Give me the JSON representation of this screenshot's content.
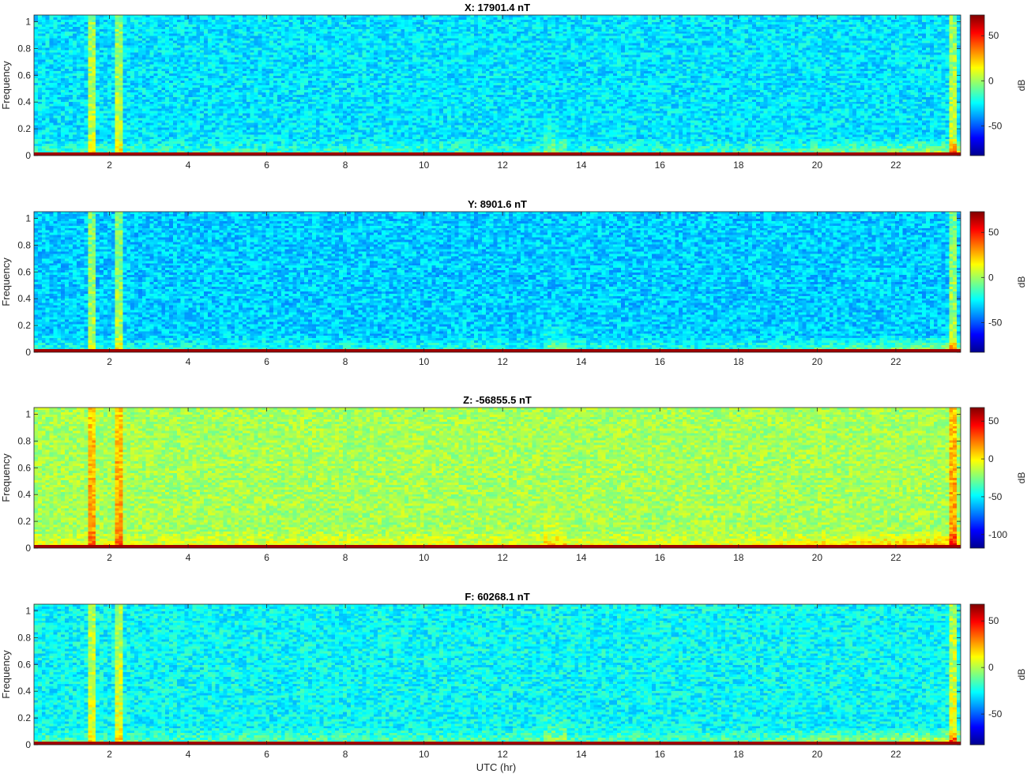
{
  "figure": {
    "xlabel": "UTC (hr)"
  },
  "colormap": [
    "#00008f",
    "#0000ff",
    "#007fff",
    "#00ffff",
    "#7fff7f",
    "#ffff00",
    "#ff7f00",
    "#ff0000",
    "#800000"
  ],
  "chart_data": [
    {
      "type": "heatmap",
      "title": "X: 17901.4 nT",
      "xlabel": "",
      "ylabel": "Frequency",
      "xlim": [
        0.08,
        23.65
      ],
      "ylim": [
        0,
        1.05
      ],
      "xticks": [
        2,
        4,
        6,
        8,
        10,
        12,
        14,
        16,
        18,
        20,
        22
      ],
      "yticks": [
        0,
        0.2,
        0.4,
        0.6,
        0.8,
        1
      ],
      "colorbar": {
        "label": "dB",
        "range": [
          -83,
          73
        ],
        "ticks": [
          -50,
          0,
          50
        ]
      },
      "background_db": -28,
      "spikes_hr": [
        1.55,
        2.25,
        23.45
      ],
      "noise_band_hr": [
        13.0,
        13.6
      ]
    },
    {
      "type": "heatmap",
      "title": "Y: 8901.6 nT",
      "xlabel": "",
      "ylabel": "Frequency",
      "xlim": [
        0.08,
        23.65
      ],
      "ylim": [
        0,
        1.05
      ],
      "xticks": [
        2,
        4,
        6,
        8,
        10,
        12,
        14,
        16,
        18,
        20,
        22
      ],
      "yticks": [
        0,
        0.2,
        0.4,
        0.6,
        0.8,
        1
      ],
      "colorbar": {
        "label": "dB",
        "range": [
          -83,
          73
        ],
        "ticks": [
          -50,
          0,
          50
        ]
      },
      "background_db": -32,
      "spikes_hr": [
        1.55,
        2.25,
        23.45
      ],
      "noise_band_hr": [
        13.0,
        13.6
      ]
    },
    {
      "type": "heatmap",
      "title": "Z: -56855.5 nT",
      "xlabel": "",
      "ylabel": "Frequency",
      "xlim": [
        0.08,
        23.65
      ],
      "ylim": [
        0,
        1.05
      ],
      "xticks": [
        2,
        4,
        6,
        8,
        10,
        12,
        14,
        16,
        18,
        20,
        22
      ],
      "yticks": [
        0,
        0.2,
        0.4,
        0.6,
        0.8,
        1
      ],
      "colorbar": {
        "label": "dB",
        "range": [
          -118,
          68
        ],
        "ticks": [
          -100,
          -50,
          0,
          50
        ]
      },
      "background_db": -18,
      "spikes_hr": [
        1.55,
        2.25,
        23.45
      ],
      "noise_band_hr": [
        13.0,
        13.6
      ]
    },
    {
      "type": "heatmap",
      "title": "F: 60268.1 nT",
      "xlabel": "UTC (hr)",
      "ylabel": "Frequency",
      "xlim": [
        0.08,
        23.65
      ],
      "ylim": [
        0,
        1.05
      ],
      "xticks": [
        2,
        4,
        6,
        8,
        10,
        12,
        14,
        16,
        18,
        20,
        22
      ],
      "yticks": [
        0,
        0.2,
        0.4,
        0.6,
        0.8,
        1
      ],
      "colorbar": {
        "label": "dB",
        "range": [
          -83,
          68
        ],
        "ticks": [
          -50,
          0,
          50
        ]
      },
      "background_db": -26,
      "spikes_hr": [
        1.55,
        2.25,
        23.45
      ],
      "noise_band_hr": [
        13.0,
        13.6
      ]
    }
  ]
}
